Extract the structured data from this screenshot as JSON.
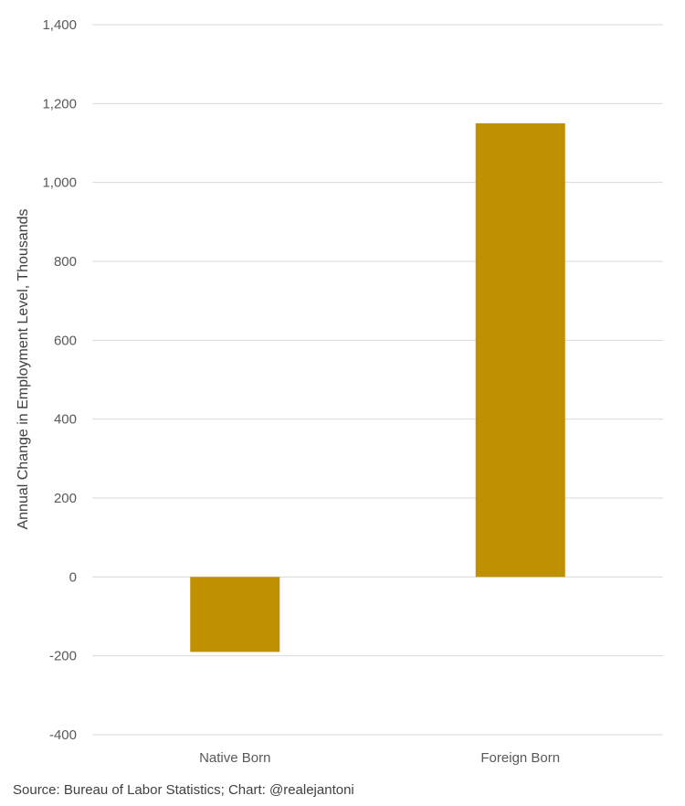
{
  "chart_data": {
    "type": "bar",
    "categories": [
      "Native Born",
      "Foreign Born"
    ],
    "values": [
      -190,
      1150
    ],
    "ylabel": "Annual Change in Employment Level, Thousands",
    "ylim": [
      -400,
      1400
    ],
    "yticks": [
      -400,
      -200,
      0,
      200,
      400,
      600,
      800,
      1000,
      1200,
      1400
    ],
    "ytick_labels": [
      "-400",
      "-200",
      "0",
      "200",
      "400",
      "600",
      "800",
      "1,000",
      "1,200",
      "1,400"
    ],
    "grid": true,
    "legend": "none",
    "bar_color": "#BF9000"
  },
  "source_note": "Source: Bureau of Labor Statistics; Chart: @realejantoni"
}
